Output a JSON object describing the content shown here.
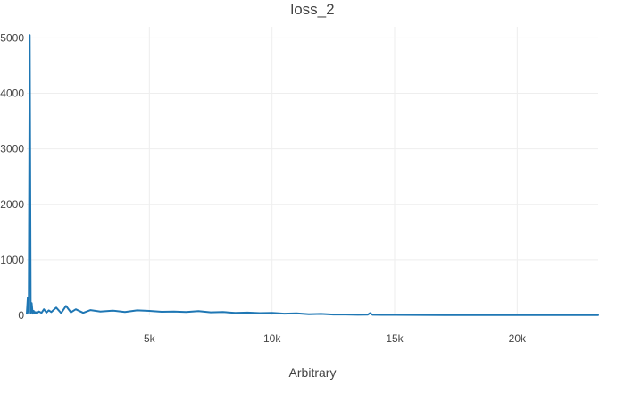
{
  "chart_data": {
    "type": "line",
    "title": "loss_2",
    "xlabel": "Arbitrary",
    "ylabel": "",
    "xlim": [
      0,
      23300
    ],
    "ylim": [
      0,
      5200
    ],
    "xticks": [
      5000,
      10000,
      15000,
      20000
    ],
    "xtick_labels": [
      "5k",
      "10k",
      "15k",
      "20k"
    ],
    "yticks": [
      0,
      1000,
      2000,
      3000,
      4000,
      5000
    ],
    "ytick_labels": [
      "0",
      "1000",
      "2000",
      "3000",
      "4000",
      "5000"
    ],
    "grid": true,
    "series": [
      {
        "color": "#1f77b4",
        "x": [
          0,
          40,
          80,
          120,
          160,
          200,
          240,
          280,
          320,
          360,
          400,
          500,
          600,
          700,
          800,
          900,
          1000,
          1200,
          1400,
          1600,
          1800,
          2000,
          2300,
          2600,
          3000,
          3500,
          4000,
          4500,
          5000,
          5500,
          6000,
          6500,
          7000,
          7500,
          8000,
          8500,
          9000,
          9500,
          10000,
          10500,
          11000,
          11500,
          12000,
          12500,
          13000,
          13500,
          13900,
          14000,
          14100,
          14500,
          15000,
          16000,
          17000,
          18000,
          19000,
          20000,
          21000,
          22000,
          23300
        ],
        "y": [
          30,
          320,
          40,
          5050,
          40,
          220,
          30,
          80,
          40,
          60,
          35,
          70,
          45,
          110,
          50,
          90,
          60,
          140,
          40,
          170,
          55,
          110,
          45,
          95,
          70,
          85,
          60,
          90,
          80,
          65,
          70,
          60,
          75,
          55,
          60,
          45,
          50,
          40,
          45,
          30,
          35,
          20,
          25,
          15,
          15,
          10,
          12,
          40,
          10,
          8,
          8,
          6,
          5,
          5,
          5,
          4,
          4,
          3,
          3
        ]
      }
    ]
  }
}
